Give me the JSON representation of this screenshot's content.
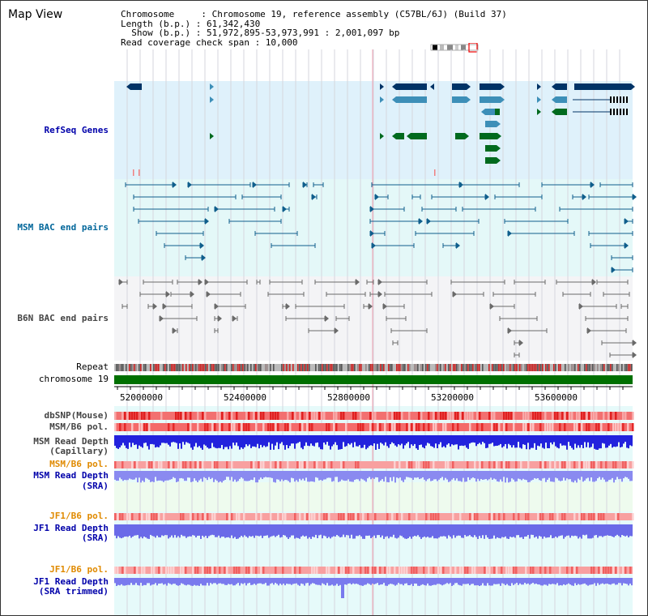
{
  "title": "Map View",
  "info": {
    "chromosome": "Chromosome     : Chromosome 19, reference assembly (C57BL/6J) (Build 37)",
    "length": "Length (b.p.) : 61,342,430",
    "show": "  Show (b.p.) : 51,972,895-53,973,991 : 2,001,097 bp",
    "coverage": "Read coverage check span : 10,000"
  },
  "tracks": {
    "refseq": "RefSeq Genes",
    "msm_bac": "MSM BAC end pairs",
    "b6n_bac": "B6N BAC end pairs",
    "repeat": "Repeat",
    "chromosome": "chromosome 19",
    "dbsnp": "dbSNP(Mouse)",
    "msm_b6_pol": "MSM/B6 pol.",
    "msm_depth_cap_1": "MSM Read Depth",
    "msm_depth_cap_2": "(Capillary)",
    "msm_b6_pol2": "MSM/B6 pol.",
    "msm_depth_sra_1": "MSM Read Depth",
    "msm_depth_sra_2": "(SRA)",
    "jf1_b6_pol": "JF1/B6 pol.",
    "jf1_depth_1": "JF1 Read Depth",
    "jf1_depth_2": "(SRA)",
    "jf1_b6_pol2": "JF1/B6 pol.",
    "jf1_trim_1": "JF1 Read Depth",
    "jf1_trim_2": "(SRA trimmed)"
  },
  "axis": {
    "ticks": [
      "52000000",
      "52400000",
      "52800000",
      "53200000",
      "53600000"
    ]
  },
  "colors": {
    "refseq_bg": "#dff1fb",
    "msm_bg": "#e4f8f8",
    "b6n_bg": "#f4f4f6",
    "chromosome": "#007000",
    "pol_red": "#ee3333",
    "depth_blue": "#2222dd",
    "depth_light": "#8a8af0",
    "gene_blue": "#003366",
    "gene_lightblue": "#3d8fb8",
    "gene_green": "#006a1e"
  }
}
